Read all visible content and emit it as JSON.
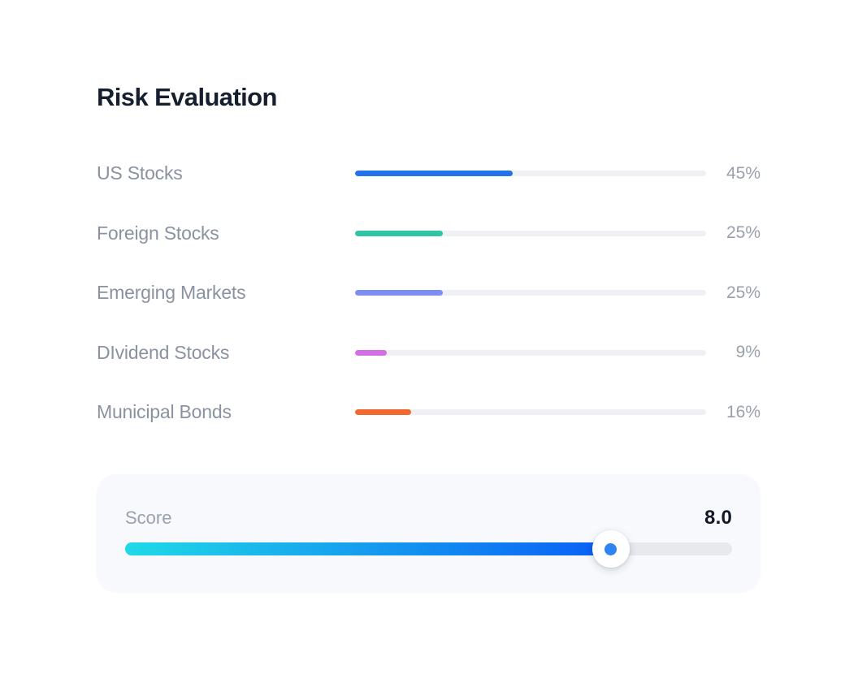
{
  "page": {
    "title": "Risk Evaluation"
  },
  "colors": {
    "background": "#ffffff",
    "title_text": "#161f2e",
    "label_text": "#8a92a0",
    "value_text": "#9aa0ab",
    "bar_track": "#eef0f3",
    "card_background": "#f7f9fc",
    "slider_track": "#e7e9ec",
    "slider_gradient_start": "#20d9e7",
    "slider_gradient_end": "#0a5ef6",
    "slider_thumb_dot": "#2e85ef",
    "score_value_text": "#121826"
  },
  "allocations": [
    {
      "label": "US Stocks",
      "value": "45%",
      "percent": 45,
      "color": "#2273e9"
    },
    {
      "label": "Foreign Stocks",
      "value": "25%",
      "percent": 25,
      "color": "#2fc4a4"
    },
    {
      "label": "Emerging Markets",
      "value": "25%",
      "percent": 25,
      "color": "#7d8df2"
    },
    {
      "label": "DIvidend Stocks",
      "value": "9%",
      "percent": 9,
      "color": "#d36ee4"
    },
    {
      "label": "Municipal Bonds",
      "value": "16%",
      "percent": 16,
      "color": "#f2692f"
    }
  ],
  "score": {
    "label": "Score",
    "value": "8.0",
    "numeric": 8.0,
    "max": 10,
    "percent": 80
  },
  "chart_data": {
    "type": "bar",
    "categories": [
      "US Stocks",
      "Foreign Stocks",
      "Emerging Markets",
      "DIvidend Stocks",
      "Municipal Bonds"
    ],
    "values": [
      45,
      25,
      25,
      9,
      16
    ],
    "title": "Risk Evaluation",
    "xlabel": "",
    "ylabel": "",
    "xlim": [
      0,
      100
    ],
    "grid": false,
    "legend": false
  }
}
